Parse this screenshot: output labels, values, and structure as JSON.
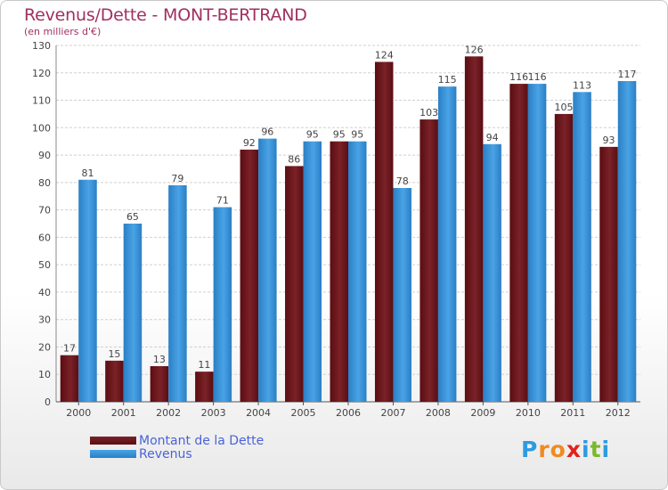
{
  "colors": {
    "debt_fill": "#7a2228",
    "debt_dark": "#5a0d12",
    "revenue_fill": "#4aa3e6",
    "revenue_dark": "#2a7fc4",
    "title": "#a03060",
    "legend_text": "#4a63d8",
    "axis_text": "#444444",
    "grid": "#d0d0d0"
  },
  "chart_data": {
    "type": "bar",
    "title": "Revenus/Dette - MONT-BERTRAND",
    "subtitle": "(en milliers d'€)",
    "categories": [
      "2000",
      "2001",
      "2002",
      "2003",
      "2004",
      "2005",
      "2006",
      "2007",
      "2008",
      "2009",
      "2010",
      "2011",
      "2012"
    ],
    "series": [
      {
        "name": "Montant de la Dette",
        "values": [
          17,
          15,
          13,
          11,
          92,
          86,
          95,
          124,
          103,
          126,
          116,
          105,
          93
        ]
      },
      {
        "name": "Revenus",
        "values": [
          81,
          65,
          79,
          71,
          96,
          95,
          95,
          78,
          115,
          94,
          116,
          113,
          117
        ]
      }
    ],
    "ylim": [
      0,
      130
    ],
    "yticks": [
      0,
      10,
      20,
      30,
      40,
      50,
      60,
      70,
      80,
      90,
      100,
      110,
      120,
      130
    ],
    "grid": true,
    "legend_position": "bottom-left"
  },
  "legend": {
    "debt_label": "Montant de la Dette",
    "revenue_label": "Revenus"
  },
  "logo": {
    "letters": [
      "P",
      "r",
      "o",
      "x",
      "i",
      "t",
      "i"
    ],
    "letter_colors": [
      "#2d9be0",
      "#f28a1e",
      "#f28a1e",
      "#e2211c",
      "#2d9be0",
      "#7cb82f",
      "#2d9be0"
    ]
  }
}
